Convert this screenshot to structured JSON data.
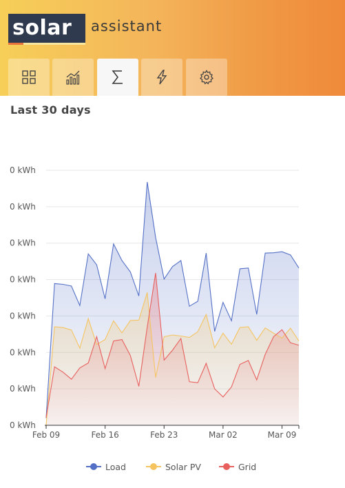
{
  "header": {
    "logo_main": "solar",
    "logo_sub": "assistant"
  },
  "tabs": [
    {
      "icon": "dashboard-grid-icon",
      "active": false
    },
    {
      "icon": "charts-icon",
      "active": false
    },
    {
      "icon": "sigma-totals-icon",
      "active": true
    },
    {
      "icon": "lightning-icon",
      "active": false
    },
    {
      "icon": "gear-icon",
      "active": false
    }
  ],
  "page": {
    "section_title": "Last 30 days"
  },
  "colors": {
    "load": "#5470c6",
    "solar_pv": "#f5c461",
    "grid": "#e8605e"
  },
  "chart_data": {
    "type": "area",
    "title": "Last 30 days",
    "ylabel": "",
    "xlabel": "",
    "y_tick_labels": [
      "0 kWh",
      "0 kWh",
      "0 kWh",
      "0 kWh",
      "0 kWh",
      "0 kWh",
      "0 kWh",
      "0 kWh"
    ],
    "x_tick_labels": [
      "Feb 09",
      "Feb 16",
      "Feb 23",
      "Mar 02",
      "Mar 09"
    ],
    "x": [
      "Feb 09",
      "Feb 10",
      "Feb 11",
      "Feb 12",
      "Feb 13",
      "Feb 14",
      "Feb 15",
      "Feb 16",
      "Feb 17",
      "Feb 18",
      "Feb 19",
      "Feb 20",
      "Feb 21",
      "Feb 22",
      "Feb 23",
      "Feb 24",
      "Feb 25",
      "Feb 26",
      "Feb 27",
      "Feb 28",
      "Mar 01",
      "Mar 02",
      "Mar 03",
      "Mar 04",
      "Mar 05",
      "Mar 06",
      "Mar 07",
      "Mar 08",
      "Mar 09",
      "Mar 10",
      "Mar 11"
    ],
    "ylim": [
      0,
      7.2
    ],
    "grid": true,
    "legend_position": "bottom",
    "series": [
      {
        "name": "Load",
        "values": [
          0.2,
          4.0,
          3.98,
          3.93,
          3.38,
          4.84,
          4.53,
          3.57,
          5.12,
          4.65,
          4.33,
          3.65,
          6.87,
          5.3,
          4.13,
          4.48,
          4.65,
          3.36,
          3.5,
          4.86,
          2.65,
          3.47,
          2.95,
          4.42,
          4.44,
          3.13,
          4.86,
          4.87,
          4.9,
          4.81,
          4.44
        ]
      },
      {
        "name": "Solar PV",
        "values": [
          0.0,
          2.78,
          2.76,
          2.69,
          2.18,
          3.01,
          2.28,
          2.42,
          2.95,
          2.61,
          2.96,
          2.97,
          3.75,
          1.35,
          2.5,
          2.55,
          2.52,
          2.48,
          2.64,
          3.13,
          2.19,
          2.6,
          2.29,
          2.76,
          2.78,
          2.4,
          2.75,
          2.6,
          2.46,
          2.74,
          2.38
        ]
      },
      {
        "name": "Grid",
        "values": [
          0.22,
          1.65,
          1.5,
          1.3,
          1.62,
          1.76,
          2.5,
          1.6,
          2.38,
          2.42,
          1.97,
          1.1,
          2.77,
          4.3,
          1.84,
          2.12,
          2.45,
          1.23,
          1.2,
          1.75,
          1.03,
          0.8,
          1.08,
          1.72,
          1.83,
          1.28,
          2.0,
          2.5,
          2.7,
          2.33,
          2.26
        ]
      }
    ]
  }
}
